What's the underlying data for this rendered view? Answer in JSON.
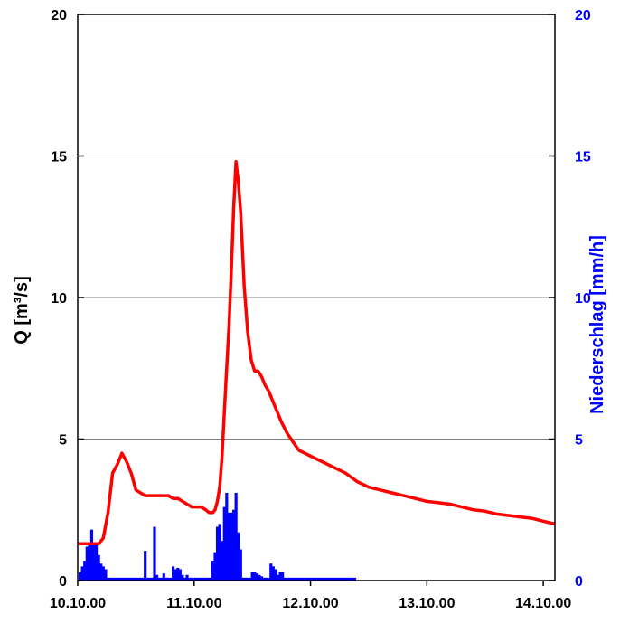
{
  "chart_data": {
    "type": "line+bar",
    "y_left": {
      "label": "Q [m³/s]",
      "range": [
        0,
        20
      ],
      "ticks": [
        "0",
        "5",
        "10",
        "15",
        "20"
      ],
      "color": "#000000"
    },
    "y_right": {
      "label": "Niederschlag [mm/h]",
      "range": [
        0,
        20
      ],
      "ticks": [
        "0",
        "5",
        "10",
        "15",
        "20"
      ],
      "color": "#0000ff"
    },
    "x_axis": {
      "range_days": [
        0,
        4.1
      ],
      "tick_labels": [
        "10.10.00",
        "11.10.00",
        "12.10.00",
        "13.10.00",
        "14.10.00"
      ]
    },
    "grid": "horizontal",
    "series": [
      {
        "kind": "line",
        "axis": "left",
        "color": "#ff0000",
        "x_days": [
          0.0,
          0.1,
          0.18,
          0.22,
          0.26,
          0.3,
          0.34,
          0.38,
          0.42,
          0.46,
          0.5,
          0.54,
          0.58,
          0.62,
          0.66,
          0.7,
          0.74,
          0.78,
          0.82,
          0.86,
          0.9,
          0.94,
          0.98,
          1.02,
          1.06,
          1.1,
          1.13,
          1.16,
          1.18,
          1.2,
          1.22,
          1.24,
          1.26,
          1.28,
          1.3,
          1.32,
          1.34,
          1.36,
          1.38,
          1.4,
          1.43,
          1.46,
          1.49,
          1.52,
          1.55,
          1.58,
          1.61,
          1.64,
          1.67,
          1.7,
          1.75,
          1.8,
          1.85,
          1.9,
          1.95,
          2.0,
          2.05,
          2.1,
          2.2,
          2.3,
          2.4,
          2.5,
          2.6,
          2.7,
          2.8,
          2.9,
          3.0,
          3.1,
          3.2,
          3.3,
          3.4,
          3.5,
          3.6,
          3.7,
          3.8,
          3.9,
          4.0,
          4.1
        ],
        "values": [
          1.3,
          1.3,
          1.3,
          1.5,
          2.4,
          3.8,
          4.1,
          4.5,
          4.2,
          3.8,
          3.2,
          3.1,
          3.0,
          3.0,
          3.0,
          3.0,
          3.0,
          3.0,
          2.9,
          2.9,
          2.8,
          2.7,
          2.6,
          2.6,
          2.6,
          2.5,
          2.4,
          2.4,
          2.5,
          2.8,
          3.3,
          4.4,
          6.0,
          7.5,
          9.0,
          11.0,
          13.2,
          14.8,
          14.1,
          13.0,
          10.4,
          8.8,
          7.8,
          7.4,
          7.4,
          7.2,
          6.9,
          6.7,
          6.4,
          6.1,
          5.6,
          5.2,
          4.9,
          4.6,
          4.5,
          4.4,
          4.3,
          4.2,
          4.0,
          3.8,
          3.5,
          3.3,
          3.2,
          3.1,
          3.0,
          2.9,
          2.8,
          2.75,
          2.7,
          2.6,
          2.5,
          2.45,
          2.35,
          2.3,
          2.25,
          2.2,
          2.1,
          2.0
        ]
      },
      {
        "kind": "bar",
        "axis": "right",
        "color": "#0000ff",
        "x_days": [
          0.02,
          0.04,
          0.06,
          0.08,
          0.1,
          0.12,
          0.14,
          0.16,
          0.18,
          0.2,
          0.22,
          0.24,
          0.26,
          0.28,
          0.3,
          0.32,
          0.34,
          0.36,
          0.38,
          0.4,
          0.42,
          0.44,
          0.46,
          0.48,
          0.5,
          0.52,
          0.54,
          0.56,
          0.58,
          0.6,
          0.62,
          0.64,
          0.66,
          0.68,
          0.7,
          0.72,
          0.74,
          0.76,
          0.78,
          0.8,
          0.82,
          0.84,
          0.86,
          0.88,
          0.9,
          0.92,
          0.94,
          0.96,
          0.98,
          1.0,
          1.02,
          1.04,
          1.06,
          1.08,
          1.1,
          1.12,
          1.14,
          1.16,
          1.18,
          1.2,
          1.22,
          1.24,
          1.26,
          1.28,
          1.3,
          1.32,
          1.34,
          1.36,
          1.38,
          1.4,
          1.42,
          1.44,
          1.46,
          1.48,
          1.5,
          1.52,
          1.54,
          1.56,
          1.58,
          1.6,
          1.62,
          1.64,
          1.66,
          1.68,
          1.7,
          1.72,
          1.74,
          1.76,
          1.78,
          1.8,
          1.82,
          1.84,
          1.86,
          1.88,
          1.9,
          1.92,
          1.94,
          1.96,
          1.98,
          2.0,
          2.02,
          2.04,
          2.06,
          2.08,
          2.1,
          2.12,
          2.14,
          2.16,
          2.18,
          2.2,
          2.22,
          2.24,
          2.26,
          2.28,
          2.3,
          2.32,
          2.34,
          2.36,
          2.38
        ],
        "values": [
          0.3,
          0.5,
          0.7,
          1.2,
          1.3,
          1.8,
          1.3,
          1.3,
          0.9,
          0.6,
          0.5,
          0.4,
          0.1,
          0.1,
          0.1,
          0.1,
          0.1,
          0.1,
          0.1,
          0.1,
          0.1,
          0.1,
          0.1,
          0.1,
          0.1,
          0.1,
          0.1,
          0.1,
          1.05,
          0.1,
          0.1,
          0.1,
          1.9,
          0.2,
          0.1,
          0.1,
          0.25,
          0.1,
          0.1,
          0.1,
          0.5,
          0.4,
          0.45,
          0.4,
          0.2,
          0.1,
          0.2,
          0.1,
          0.1,
          0.1,
          0.1,
          0.1,
          0.1,
          0.1,
          0.1,
          0.1,
          0.1,
          0.7,
          1.0,
          1.9,
          2.0,
          1.4,
          2.6,
          3.1,
          2.4,
          2.4,
          2.5,
          3.1,
          1.7,
          1.1,
          0.1,
          0.1,
          0.1,
          0.1,
          0.3,
          0.3,
          0.25,
          0.2,
          0.15,
          0.1,
          0.1,
          0.1,
          0.6,
          0.5,
          0.4,
          0.2,
          0.3,
          0.3,
          0.1,
          0.1,
          0.1,
          0.1,
          0.1,
          0.1,
          0.1,
          0.1,
          0.1,
          0.1,
          0.1,
          0.1,
          0.1,
          0.1,
          0.1,
          0.1,
          0.1,
          0.1,
          0.1,
          0.1,
          0.1,
          0.1,
          0.1,
          0.1,
          0.1,
          0.1,
          0.1,
          0.1,
          0.1,
          0.1,
          0.1
        ]
      }
    ]
  }
}
